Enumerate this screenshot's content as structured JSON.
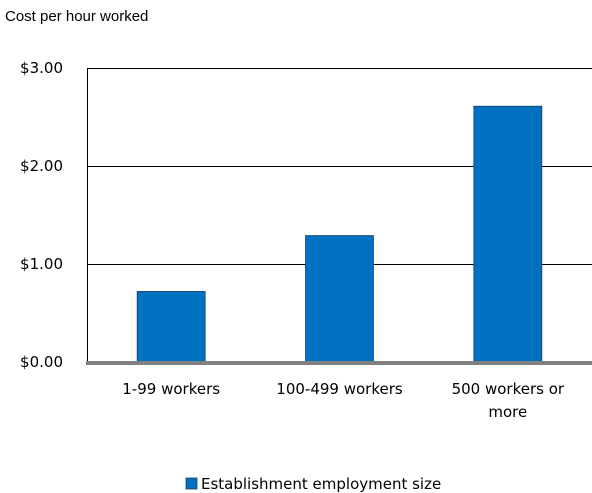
{
  "chart_data": {
    "type": "bar",
    "ylabel": "Cost per hour worked",
    "categories": [
      [
        "1-99 workers"
      ],
      [
        "100-499 workers"
      ],
      [
        "500 workers or",
        "more"
      ]
    ],
    "series": [
      {
        "name": "Establishment employment size",
        "values": [
          0.72,
          1.29,
          2.61
        ],
        "color": "#0070c0"
      }
    ],
    "yticks": [
      "$0.00",
      "$1.00",
      "$2.00",
      "$3.00"
    ],
    "ylim": [
      0,
      3
    ],
    "grid": true,
    "legend_position": "bottom"
  }
}
